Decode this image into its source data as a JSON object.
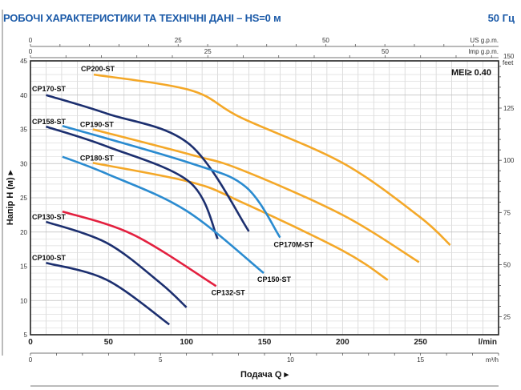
{
  "header": {
    "title": "РОБОЧІ ХАРАКТЕРИСТИКИ ТА ТЕХНІЧНІ ДАНІ  –  HS=0 м",
    "frequency": "50 Гц"
  },
  "chart_data": {
    "type": "line",
    "xlabel": "Подача Q ▸",
    "ylabel": "Напір H (м) ▸",
    "annotation": "MEI≥ 0.40",
    "x_unit": "l/min",
    "xlim": [
      0,
      300
    ],
    "ylim": [
      5,
      45
    ],
    "grid": true,
    "x_ticks": [
      0,
      50,
      100,
      150,
      200,
      250
    ],
    "y_ticks": [
      5,
      10,
      15,
      20,
      25,
      30,
      35,
      40,
      45
    ],
    "secondary_axes": {
      "us_gpm": {
        "label": "US g.p.m.",
        "ticks": [
          0,
          25,
          50
        ]
      },
      "imp_gpm": {
        "label": "Imp g.p.m.",
        "ticks": [
          0,
          25,
          50
        ]
      },
      "m3h": {
        "label": "m³/h",
        "ticks": [
          0,
          5,
          10,
          15
        ]
      },
      "feet": {
        "label": "feet",
        "ticks": [
          25,
          50,
          75,
          100,
          125,
          150
        ]
      }
    },
    "series": [
      {
        "name": "CP200-ST",
        "color": "#f4a828",
        "points": [
          [
            40.6,
            43
          ],
          [
            102.7,
            40.7
          ],
          [
            135,
            36.7
          ],
          [
            200,
            30.1
          ],
          [
            249,
            22.3
          ],
          [
            269,
            18.1
          ]
        ]
      },
      {
        "name": "CP190-ST",
        "color": "#f4a828",
        "points": [
          [
            40,
            35
          ],
          [
            102.7,
            31.3
          ],
          [
            135,
            29.1
          ],
          [
            200,
            22.5
          ],
          [
            249,
            15.6
          ]
        ]
      },
      {
        "name": "CP180-ST",
        "color": "#f4a828",
        "points": [
          [
            40,
            30.1
          ],
          [
            102.7,
            27.3
          ],
          [
            135,
            24.4
          ],
          [
            200,
            17.3
          ],
          [
            229,
            13
          ]
        ]
      },
      {
        "name": "CP170-ST",
        "color": "#1c2f6f",
        "points": [
          [
            10,
            40
          ],
          [
            49,
            37.3
          ],
          [
            102,
            32.8
          ],
          [
            140,
            20.1
          ]
        ]
      },
      {
        "name": "CP158-ST",
        "color": "#1c2f6f",
        "points": [
          [
            10,
            35.4
          ],
          [
            49,
            32.5
          ],
          [
            102,
            27.3
          ],
          [
            120,
            19
          ]
        ]
      },
      {
        "name": "CP170M-ST",
        "color": "#2a8bd0",
        "points": [
          [
            20.5,
            35.5
          ],
          [
            102,
            30.1
          ],
          [
            138,
            26.6
          ],
          [
            160,
            19.2
          ]
        ]
      },
      {
        "name": "CP150-ST",
        "color": "#2a8bd0",
        "points": [
          [
            20.5,
            31
          ],
          [
            49,
            28.5
          ],
          [
            100,
            23.1
          ],
          [
            149.5,
            14
          ]
        ]
      },
      {
        "name": "CP132-ST",
        "color": "#e3203f",
        "points": [
          [
            20.5,
            23
          ],
          [
            66,
            19.6
          ],
          [
            119,
            12.1
          ]
        ]
      },
      {
        "name": "CP130-ST",
        "color": "#1c2f6f",
        "points": [
          [
            10,
            21.5
          ],
          [
            49,
            18.4
          ],
          [
            83,
            12.6
          ],
          [
            100,
            9
          ]
        ]
      },
      {
        "name": "CP100-ST",
        "color": "#1c2f6f",
        "points": [
          [
            10,
            15.5
          ],
          [
            49,
            13
          ],
          [
            89,
            6.5
          ]
        ]
      }
    ]
  }
}
